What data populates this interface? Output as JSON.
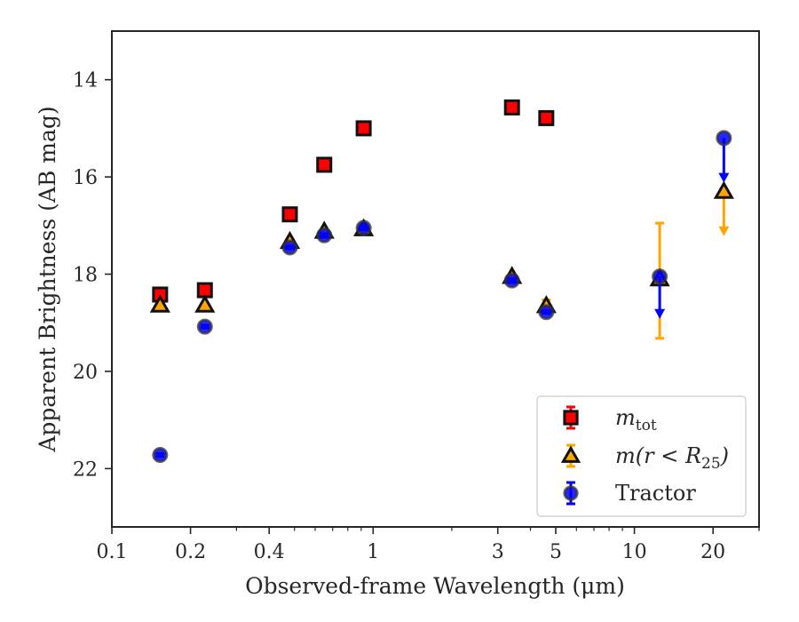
{
  "chart_data": {
    "type": "scatter",
    "title": "",
    "xlabel": "Observed-frame Wavelength (μm)",
    "ylabel": "Apparent Brightness (AB mag)",
    "xscale": "log",
    "xlim": [
      0.1,
      30
    ],
    "ylim": [
      23.2,
      13.0
    ],
    "y_inverted": true,
    "x_ticks": [
      {
        "value": 0.1,
        "label": "0.1"
      },
      {
        "value": 0.2,
        "label": "0.2"
      },
      {
        "value": 0.4,
        "label": "0.4"
      },
      {
        "value": 1,
        "label": "1"
      },
      {
        "value": 3,
        "label": "3"
      },
      {
        "value": 5,
        "label": "5"
      },
      {
        "value": 10,
        "label": "10"
      },
      {
        "value": 20,
        "label": "20"
      }
    ],
    "y_ticks": [
      {
        "value": 14,
        "label": "14"
      },
      {
        "value": 16,
        "label": "16"
      },
      {
        "value": 18,
        "label": "18"
      },
      {
        "value": 20,
        "label": "20"
      },
      {
        "value": 22,
        "label": "22"
      }
    ],
    "grid": false,
    "legend_position": "lower-right",
    "series": [
      {
        "name": "m_tot",
        "legend_label": {
          "main": "m",
          "sub": "tot"
        },
        "marker": "square",
        "color": "#ff0000",
        "errorbar_color": "#ff0000",
        "points": [
          {
            "x": 0.153,
            "y": 18.42,
            "err": 0.03
          },
          {
            "x": 0.227,
            "y": 18.33,
            "err": 0.03
          },
          {
            "x": 0.48,
            "y": 16.77,
            "err": 0.03
          },
          {
            "x": 0.65,
            "y": 15.75,
            "err": 0.03
          },
          {
            "x": 0.92,
            "y": 15.0,
            "err": 0.03
          },
          {
            "x": 3.4,
            "y": 14.57,
            "err": 0.03
          },
          {
            "x": 4.6,
            "y": 14.79,
            "err": 0.03
          }
        ]
      },
      {
        "name": "m(r < R25)",
        "legend_label": {
          "main": "m(r < R",
          "sub": "25",
          "tail": ")"
        },
        "marker": "triangle",
        "color": "#ffa500",
        "errorbar_color": "#ffa500",
        "points": [
          {
            "x": 0.153,
            "y": 18.64,
            "err": 0.03
          },
          {
            "x": 0.227,
            "y": 18.64,
            "err": 0.03
          },
          {
            "x": 0.48,
            "y": 17.33,
            "err": 0.03
          },
          {
            "x": 0.65,
            "y": 17.12,
            "err": 0.03
          },
          {
            "x": 0.92,
            "y": 17.07,
            "err": 0.03
          },
          {
            "x": 3.4,
            "y": 18.05,
            "err": 0.03
          },
          {
            "x": 4.6,
            "y": 18.65,
            "err": 0.12
          },
          {
            "x": 12.5,
            "y": 18.1,
            "err_low": 1.22,
            "err_high": 1.15
          },
          {
            "x": 22.0,
            "y": 16.3,
            "upper_limit_to": 17.2
          }
        ]
      },
      {
        "name": "Tractor",
        "legend_label": {
          "main": "Tractor"
        },
        "marker": "circle",
        "color": "#0000ff",
        "errorbar_color": "#0000ff",
        "points": [
          {
            "x": 0.153,
            "y": 21.72,
            "err": 0.03
          },
          {
            "x": 0.227,
            "y": 19.08,
            "err": 0.03
          },
          {
            "x": 0.48,
            "y": 17.45,
            "err": 0.03
          },
          {
            "x": 0.65,
            "y": 17.2,
            "err": 0.03
          },
          {
            "x": 0.92,
            "y": 17.05,
            "err": 0.03
          },
          {
            "x": 3.4,
            "y": 18.13,
            "err": 0.03
          },
          {
            "x": 4.6,
            "y": 18.78,
            "err": 0.03
          },
          {
            "x": 12.5,
            "y": 18.05,
            "upper_limit_to": 18.9
          },
          {
            "x": 22.0,
            "y": 15.2,
            "upper_limit_to": 16.1
          }
        ]
      }
    ]
  }
}
